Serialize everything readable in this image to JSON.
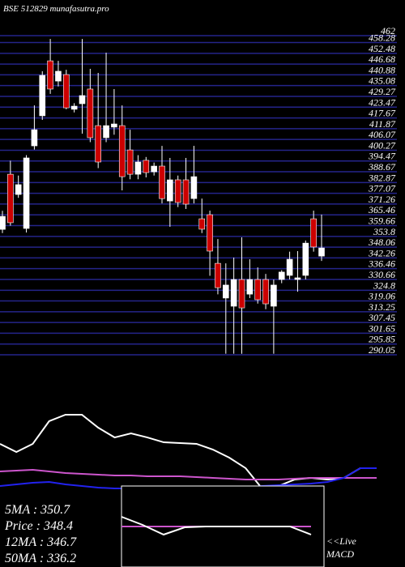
{
  "chart_data": [
    {
      "type": "candlestick",
      "title": "BSE 512829 munafasutra.pro",
      "open": [
        355,
        384.7,
        373.8,
        355.5,
        400,
        416.2,
        445.8,
        434.9,
        438.4,
        419.7,
        422.7,
        430.6,
        410.9,
        404.4,
        410.1,
        410.9,
        397.8,
        384.7,
        392.2,
        386,
        389.1,
        370.3,
        381.7,
        381.7,
        371.6,
        360.7,
        362.9,
        336.7,
        318,
        313.6,
        328,
        320.1,
        328,
        328,
        313.6,
        328,
        330.2,
        328,
        330.2,
        360.7,
        340.6
      ],
      "high": [
        365,
        392,
        384,
        395,
        421.8,
        440.2,
        457.6,
        445.8,
        441,
        423,
        457.6,
        441.5,
        439.3,
        450.2,
        430.6,
        421.8,
        408.7,
        395,
        394,
        391,
        400,
        393.5,
        384,
        393.5,
        400,
        371.6,
        365.1,
        349.8,
        336.7,
        339.8,
        350.7,
        338.9,
        334.5,
        331,
        328,
        333,
        343,
        343.3,
        349,
        365.1,
        363
      ],
      "low": [
        353,
        357,
        372,
        353.3,
        398,
        414,
        428,
        432,
        419.7,
        418,
        406.6,
        402,
        388,
        402,
        406,
        376,
        382,
        382,
        383,
        384,
        369,
        356.4,
        367,
        366,
        369,
        353,
        330,
        320,
        288,
        288,
        288,
        318,
        315,
        312,
        288,
        326,
        328,
        321.4,
        328,
        343,
        338
      ],
      "close": [
        362,
        358.6,
        379.1,
        393.5,
        408.7,
        438,
        430.6,
        440.2,
        420.5,
        421.4,
        427.1,
        404.4,
        391.3,
        410.9,
        411.8,
        383.4,
        384.7,
        391.3,
        385.6,
        389.1,
        371.6,
        381.7,
        369.5,
        368.6,
        383.4,
        355.1,
        343.3,
        323.6,
        325,
        328,
        312.7,
        328,
        317.1,
        314.9,
        325,
        332,
        338.9,
        328.9,
        347.6,
        345.5,
        345
      ],
      "up_color": "#ffffff",
      "down_color": "#cc0000",
      "grid_color": "#24248a",
      "ylim": [
        290.05,
        462
      ],
      "yticks": [
        462,
        458.28,
        452.48,
        446.68,
        440.88,
        435.08,
        429.27,
        423.47,
        417.67,
        411.87,
        406.07,
        400.27,
        394.47,
        388.67,
        382.87,
        377.07,
        371.26,
        365.46,
        359.66,
        353.8,
        348.06,
        342.26,
        336.46,
        330.66,
        324.8,
        319.06,
        313.25,
        307.45,
        301.65,
        295.85,
        290.05
      ]
    },
    {
      "type": "line",
      "ylim": [
        0,
        100
      ],
      "series": [
        {
          "color": "#ffffff",
          "values": [
            51.7,
            43.3,
            51.7,
            75,
            81.7,
            81.7,
            68.3,
            58.3,
            62.5,
            58.3,
            53.3,
            52.5,
            51.7,
            45.8,
            37.5,
            26.7,
            5.8,
            8.3,
            15,
            16.7,
            15,
            16.7,
            26.7,
            26.7
          ]
        },
        {
          "color": "#cc55cc",
          "values": [
            23.3,
            24.2,
            25,
            23.3,
            21.7,
            20.8,
            20,
            19.2,
            19.2,
            18.3,
            18.3,
            18.3,
            17.5,
            16.7,
            15.8,
            15,
            15,
            15,
            15.8,
            16.7,
            16.7,
            16.7,
            16.7,
            16.7
          ]
        },
        {
          "color": "#2222ee",
          "values": [
            8.3,
            10,
            11.7,
            12.5,
            10,
            8.3,
            6.7,
            5.8,
            5.8,
            5.8,
            5.8,
            5.8,
            5.8,
            5.8,
            5.8,
            6.7,
            8.3,
            9.2,
            10,
            10.8,
            12.5,
            16.7,
            26.7,
            26.7
          ]
        }
      ]
    },
    {
      "type": "line",
      "ylim": [
        0,
        100
      ],
      "series": [
        {
          "color": "#cc55cc",
          "values": [
            50,
            50,
            50,
            50,
            50,
            50,
            50,
            50,
            50,
            50
          ]
        },
        {
          "color": "#ffffff",
          "values": [
            62,
            52,
            40,
            49,
            50,
            50,
            50,
            50,
            50,
            40
          ]
        }
      ]
    }
  ],
  "info": {
    "lines": [
      "5MA : 350.7",
      "Price : 348.4",
      "12MA : 346.7",
      "50MA : 336.2"
    ],
    "live": "<<Live",
    "macd": "MACD"
  }
}
